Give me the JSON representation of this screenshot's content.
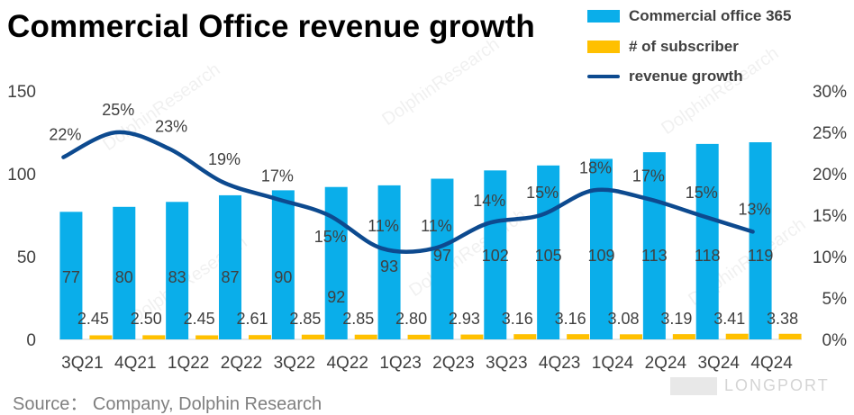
{
  "title": "Commercial  Office  revenue  growth",
  "source": "Source：  Company, Dolphin Research",
  "brand": "LONGPORT",
  "colors": {
    "bar_main": "#0aaeea",
    "bar_sub": "#ffc000",
    "line": "#0d4a8f",
    "axis": "#d9d9d9",
    "text": "#404040"
  },
  "legend": [
    {
      "label": "Commercial office 365",
      "icon": "bar-swatch",
      "color": "#0aaeea"
    },
    {
      "label": "# of subscriber",
      "icon": "bar-swatch",
      "color": "#ffc000"
    },
    {
      "label": "revenue growth",
      "icon": "line-swatch",
      "color": "#0d4a8f"
    }
  ],
  "chart_data": {
    "type": "bar",
    "title": "Commercial  Office  revenue  growth",
    "categories": [
      "3Q21",
      "4Q21",
      "1Q22",
      "2Q22",
      "3Q22",
      "4Q22",
      "1Q23",
      "2Q23",
      "3Q23",
      "4Q23",
      "1Q24",
      "2Q24",
      "3Q24",
      "4Q24"
    ],
    "series": [
      {
        "name": "Commercial office 365",
        "type": "bar",
        "axis": "left",
        "values": [
          77,
          80,
          83,
          87,
          90,
          92,
          93,
          97,
          102,
          105,
          109,
          113,
          118,
          119
        ],
        "labels": [
          "77",
          "80",
          "83",
          "87",
          "90",
          "92",
          "93",
          "97",
          "102",
          "105",
          "109",
          "113",
          "118",
          "119"
        ]
      },
      {
        "name": "# of subscriber",
        "type": "bar",
        "axis": "left",
        "values": [
          2.45,
          2.5,
          2.45,
          2.61,
          2.85,
          2.85,
          2.8,
          2.93,
          3.16,
          3.16,
          3.08,
          3.19,
          3.41,
          3.38
        ],
        "labels": [
          "2.45",
          "2.50",
          "2.45",
          "2.61",
          "2.85",
          "2.85",
          "2.80",
          "2.93",
          "3.16",
          "3.16",
          "3.08",
          "3.19",
          "3.41",
          "3.38"
        ]
      },
      {
        "name": "revenue growth",
        "type": "line",
        "axis": "right",
        "values": [
          0.22,
          0.25,
          0.23,
          0.19,
          0.17,
          0.15,
          0.11,
          0.11,
          0.14,
          0.15,
          0.18,
          0.17,
          0.15,
          0.13
        ],
        "labels": [
          "22%",
          "25%",
          "23%",
          "19%",
          "17%",
          "15%",
          "11%",
          "11%",
          "14%",
          "15%",
          "18%",
          "17%",
          "15%",
          "13%"
        ]
      }
    ],
    "y_left": {
      "min": 0,
      "max": 150,
      "ticks": [
        0,
        50,
        100,
        150
      ],
      "tick_labels": [
        "0",
        "50",
        "100",
        "150"
      ]
    },
    "y_right": {
      "min": 0,
      "max": 0.3,
      "ticks": [
        0,
        0.05,
        0.1,
        0.15,
        0.2,
        0.25,
        0.3
      ],
      "tick_labels": [
        "0%",
        "5%",
        "10%",
        "15%",
        "20%",
        "25%",
        "30%"
      ]
    },
    "xlabel": "",
    "ylabel": "",
    "grid": false,
    "legend_position": "top-right"
  }
}
